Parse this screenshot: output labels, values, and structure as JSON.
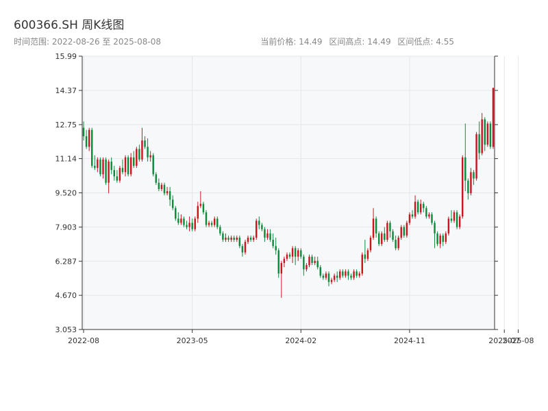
{
  "header": {
    "title": "600366.SH 周K线图",
    "date_range": "时间范围: 2022-08-26 至 2025-08-08",
    "current_price": "当前价格: 14.49",
    "high": "区间高点: 14.49",
    "low": "区间低点: 4.55"
  },
  "chart_data": {
    "type": "candlestick",
    "title": "600366.SH 周K线图",
    "xlabel": "",
    "ylabel": "",
    "ylim": [
      3.053,
      15.99
    ],
    "y_ticks": [
      "3.053",
      "4.670",
      "6.287",
      "7.903",
      "9.520",
      "11.14",
      "12.75",
      "14.37",
      "15.99"
    ],
    "x_ticks": [
      "2022-08",
      "2023-05",
      "2024-02",
      "2024-11",
      "2025-07",
      "2025-08"
    ],
    "x_tick_positions": [
      0,
      39,
      78,
      117,
      151,
      156
    ],
    "up_color": "#c8161d",
    "down_color": "#0e8a3a",
    "grid": true,
    "candles": [
      [
        12.6,
        12.2,
        12.9,
        12.0
      ],
      [
        12.2,
        11.7,
        12.5,
        11.6
      ],
      [
        11.7,
        12.5,
        12.6,
        11.5
      ],
      [
        12.5,
        10.8,
        12.6,
        10.7
      ],
      [
        10.8,
        10.7,
        11.3,
        10.6
      ],
      [
        10.7,
        11.1,
        11.2,
        10.5
      ],
      [
        11.1,
        10.4,
        11.2,
        10.3
      ],
      [
        10.4,
        11.1,
        11.2,
        10.2
      ],
      [
        11.1,
        10.0,
        11.2,
        9.9
      ],
      [
        10.0,
        11.0,
        11.1,
        9.5
      ],
      [
        11.0,
        10.6,
        11.2,
        10.4
      ],
      [
        10.6,
        10.3,
        10.8,
        10.1
      ],
      [
        10.3,
        10.1,
        10.6,
        10.0
      ],
      [
        10.1,
        10.7,
        10.8,
        10.0
      ],
      [
        10.7,
        10.5,
        11.1,
        10.4
      ],
      [
        10.5,
        11.2,
        11.3,
        10.3
      ],
      [
        11.2,
        10.4,
        11.3,
        10.3
      ],
      [
        10.4,
        11.2,
        11.4,
        10.3
      ],
      [
        11.2,
        10.8,
        11.5,
        10.7
      ],
      [
        10.8,
        11.6,
        11.7,
        10.7
      ],
      [
        11.6,
        11.1,
        11.8,
        11.0
      ],
      [
        11.1,
        12.0,
        12.6,
        11.0
      ],
      [
        12.0,
        11.7,
        12.2,
        11.6
      ],
      [
        11.7,
        11.2,
        12.1,
        11.0
      ],
      [
        11.2,
        11.3,
        11.5,
        11.0
      ],
      [
        11.3,
        10.4,
        11.4,
        10.3
      ],
      [
        10.4,
        10.0,
        10.5,
        9.9
      ],
      [
        10.0,
        9.7,
        10.2,
        9.6
      ],
      [
        9.7,
        9.9,
        10.0,
        9.6
      ],
      [
        9.9,
        9.5,
        10.0,
        9.4
      ],
      [
        9.5,
        9.6,
        9.8,
        9.4
      ],
      [
        9.6,
        9.2,
        9.8,
        8.9
      ],
      [
        9.2,
        8.8,
        9.4,
        8.7
      ],
      [
        8.8,
        8.3,
        8.9,
        8.2
      ],
      [
        8.3,
        8.1,
        8.6,
        8.0
      ],
      [
        8.1,
        8.3,
        8.5,
        8.0
      ],
      [
        8.3,
        8.0,
        8.4,
        7.9
      ],
      [
        8.0,
        7.9,
        8.2,
        7.8
      ],
      [
        7.9,
        8.1,
        8.4,
        7.7
      ],
      [
        8.1,
        7.8,
        8.3,
        7.7
      ],
      [
        7.8,
        8.3,
        8.4,
        7.7
      ],
      [
        8.3,
        8.9,
        9.1,
        8.1
      ],
      [
        8.9,
        9.0,
        9.6,
        8.8
      ],
      [
        9.0,
        8.6,
        9.1,
        8.5
      ],
      [
        8.6,
        8.0,
        8.7,
        7.9
      ],
      [
        8.0,
        8.1,
        8.2,
        7.9
      ],
      [
        8.1,
        8.0,
        8.2,
        7.9
      ],
      [
        8.0,
        8.3,
        8.4,
        7.9
      ],
      [
        8.3,
        7.9,
        8.4,
        7.8
      ],
      [
        7.9,
        7.6,
        8.0,
        7.5
      ],
      [
        7.6,
        7.3,
        7.7,
        7.2
      ],
      [
        7.3,
        7.4,
        7.6,
        7.2
      ],
      [
        7.4,
        7.3,
        7.5,
        7.2
      ],
      [
        7.3,
        7.4,
        7.5,
        7.2
      ],
      [
        7.4,
        7.3,
        7.5,
        7.2
      ],
      [
        7.3,
        7.4,
        7.5,
        7.2
      ],
      [
        7.4,
        7.0,
        7.5,
        6.9
      ],
      [
        7.0,
        6.7,
        7.1,
        6.5
      ],
      [
        6.7,
        7.2,
        7.3,
        6.6
      ],
      [
        7.2,
        7.4,
        7.5,
        7.1
      ],
      [
        7.4,
        7.3,
        7.5,
        7.2
      ],
      [
        7.3,
        7.4,
        7.5,
        7.2
      ],
      [
        7.4,
        8.2,
        8.3,
        7.3
      ],
      [
        8.2,
        8.0,
        8.4,
        7.8
      ],
      [
        8.0,
        7.8,
        8.1,
        7.7
      ],
      [
        7.8,
        7.4,
        7.9,
        7.2
      ],
      [
        7.4,
        7.6,
        7.8,
        7.3
      ],
      [
        7.6,
        7.3,
        7.8,
        7.2
      ],
      [
        7.3,
        7.0,
        7.6,
        6.9
      ],
      [
        7.0,
        6.8,
        7.4,
        6.6
      ],
      [
        6.8,
        5.7,
        6.9,
        5.5
      ],
      [
        5.7,
        6.2,
        6.3,
        4.55
      ],
      [
        6.2,
        6.4,
        6.5,
        6.0
      ],
      [
        6.4,
        6.6,
        6.7,
        6.3
      ],
      [
        6.6,
        6.5,
        6.7,
        6.4
      ],
      [
        6.5,
        6.9,
        7.0,
        6.2
      ],
      [
        6.9,
        6.5,
        7.0,
        6.1
      ],
      [
        6.5,
        6.8,
        6.9,
        6.3
      ],
      [
        6.8,
        6.5,
        6.9,
        6.4
      ],
      [
        6.5,
        5.9,
        6.6,
        5.6
      ],
      [
        5.9,
        6.1,
        6.2,
        5.8
      ],
      [
        6.1,
        6.5,
        6.6,
        6.0
      ],
      [
        6.5,
        6.2,
        6.6,
        6.1
      ],
      [
        6.2,
        6.3,
        6.5,
        6.1
      ],
      [
        6.3,
        6.0,
        6.5,
        5.9
      ],
      [
        6.0,
        5.6,
        6.1,
        5.5
      ],
      [
        5.6,
        5.5,
        5.7,
        5.4
      ],
      [
        5.5,
        5.7,
        5.8,
        5.4
      ],
      [
        5.7,
        5.3,
        5.8,
        5.1
      ],
      [
        5.3,
        5.4,
        5.5,
        5.2
      ],
      [
        5.4,
        5.6,
        5.7,
        5.3
      ],
      [
        5.6,
        5.5,
        5.8,
        5.3
      ],
      [
        5.5,
        5.8,
        5.9,
        5.4
      ],
      [
        5.8,
        5.6,
        5.9,
        5.5
      ],
      [
        5.6,
        5.8,
        5.9,
        5.5
      ],
      [
        5.8,
        5.6,
        5.9,
        5.4
      ],
      [
        5.6,
        5.5,
        5.7,
        5.4
      ],
      [
        5.5,
        5.8,
        5.9,
        5.4
      ],
      [
        5.8,
        5.6,
        5.9,
        5.5
      ],
      [
        5.6,
        5.7,
        5.8,
        5.5
      ],
      [
        5.7,
        6.6,
        6.7,
        5.6
      ],
      [
        6.6,
        6.4,
        7.3,
        6.2
      ],
      [
        6.4,
        6.8,
        6.9,
        6.3
      ],
      [
        6.8,
        7.4,
        7.5,
        6.7
      ],
      [
        7.4,
        8.3,
        8.8,
        7.3
      ],
      [
        8.3,
        7.6,
        8.4,
        7.4
      ],
      [
        7.6,
        7.1,
        7.7,
        7.0
      ],
      [
        7.1,
        7.6,
        7.7,
        7.0
      ],
      [
        7.6,
        7.3,
        7.9,
        7.2
      ],
      [
        7.3,
        8.1,
        8.2,
        7.2
      ],
      [
        8.1,
        7.7,
        8.2,
        7.4
      ],
      [
        7.7,
        7.3,
        7.8,
        7.2
      ],
      [
        7.3,
        6.9,
        7.5,
        6.8
      ],
      [
        6.9,
        7.4,
        7.5,
        6.8
      ],
      [
        7.4,
        7.9,
        8.0,
        7.3
      ],
      [
        7.9,
        7.5,
        8.0,
        7.4
      ],
      [
        7.5,
        8.1,
        8.2,
        7.4
      ],
      [
        8.1,
        8.5,
        8.6,
        8.0
      ],
      [
        8.5,
        8.4,
        8.7,
        8.3
      ],
      [
        8.4,
        9.1,
        9.4,
        8.3
      ],
      [
        9.1,
        8.6,
        9.2,
        8.5
      ],
      [
        8.6,
        9.0,
        9.2,
        8.5
      ],
      [
        9.0,
        8.8,
        9.1,
        8.6
      ],
      [
        8.8,
        8.4,
        8.9,
        8.3
      ],
      [
        8.4,
        8.5,
        8.6,
        8.3
      ],
      [
        8.5,
        8.1,
        8.6,
        8.0
      ],
      [
        8.1,
        7.6,
        8.2,
        6.9
      ],
      [
        7.6,
        7.1,
        7.7,
        7.0
      ],
      [
        7.1,
        7.5,
        7.6,
        6.9
      ],
      [
        7.5,
        7.2,
        7.6,
        7.0
      ],
      [
        7.2,
        7.6,
        7.7,
        7.1
      ],
      [
        7.6,
        8.3,
        8.4,
        7.5
      ],
      [
        8.3,
        8.2,
        8.7,
        8.1
      ],
      [
        8.2,
        8.6,
        8.7,
        8.1
      ],
      [
        8.6,
        7.9,
        8.7,
        7.8
      ],
      [
        7.9,
        8.4,
        8.5,
        7.8
      ],
      [
        8.4,
        11.2,
        11.3,
        8.3
      ],
      [
        11.2,
        10.1,
        12.8,
        9.6
      ],
      [
        10.1,
        9.5,
        10.2,
        9.2
      ],
      [
        9.5,
        10.5,
        10.7,
        9.4
      ],
      [
        10.5,
        10.2,
        10.6,
        9.9
      ],
      [
        10.2,
        12.3,
        12.4,
        10.1
      ],
      [
        12.3,
        11.4,
        12.9,
        11.1
      ],
      [
        11.4,
        13.0,
        13.3,
        11.3
      ],
      [
        13.0,
        11.8,
        13.1,
        11.5
      ],
      [
        11.8,
        12.8,
        12.9,
        11.7
      ],
      [
        12.8,
        11.7,
        12.9,
        11.6
      ],
      [
        11.7,
        14.49,
        14.49,
        11.6
      ]
    ]
  }
}
